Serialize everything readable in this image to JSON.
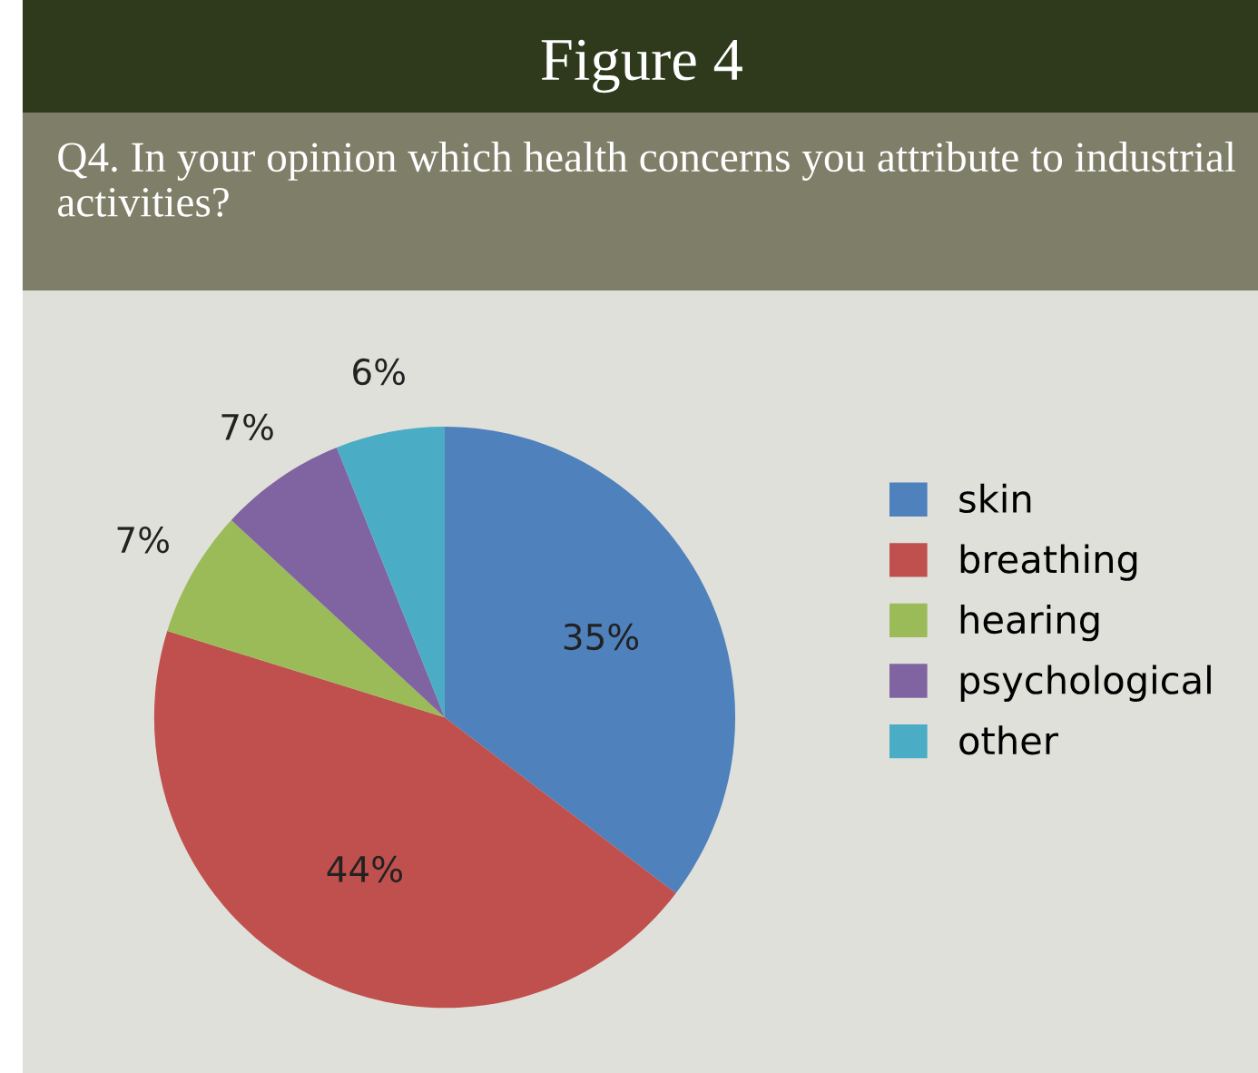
{
  "chart_data": {
    "type": "pie",
    "title": "Figure 4",
    "subtitle": "Q4. In your opinion which health concerns you attribute to industrial activities?",
    "categories": [
      "skin",
      "breathing",
      "hearing",
      "psychological",
      "other"
    ],
    "values": [
      35,
      44,
      7,
      7,
      6
    ],
    "value_labels": [
      "35%",
      "44%",
      "7%",
      "7%",
      "6%"
    ],
    "colors": [
      "#4f81bd",
      "#c0504d",
      "#9bbb59",
      "#8064a2",
      "#4bacc6"
    ],
    "legend": "right"
  }
}
